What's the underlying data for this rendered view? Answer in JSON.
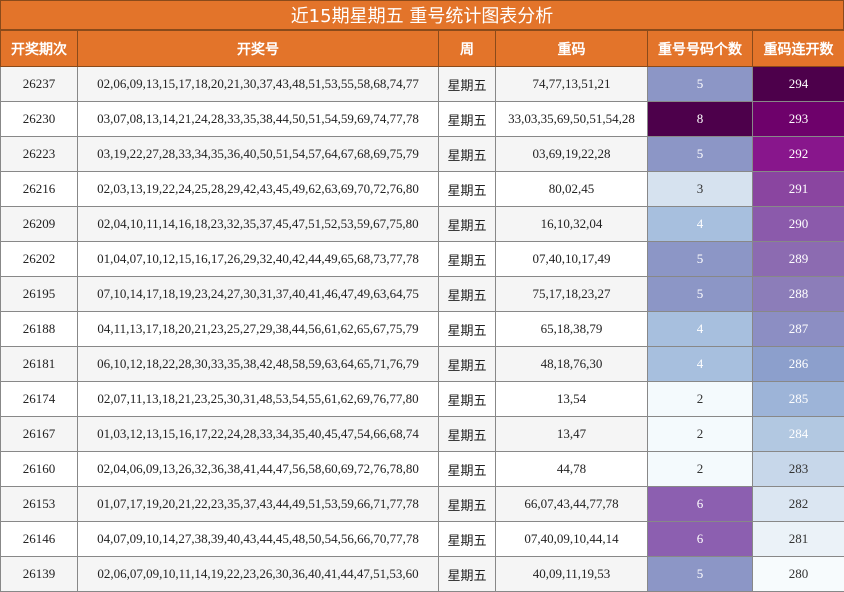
{
  "title": "近15期星期五 重号统计图表分析",
  "headers": [
    "开奖期次",
    "开奖号",
    "周",
    "重码",
    "重号号码个数",
    "重码连开数"
  ],
  "rows": [
    {
      "period": "26237",
      "numbers": "02,06,09,13,15,17,18,20,21,30,37,43,48,51,53,55,58,68,74,77",
      "week": "星期五",
      "repeat": "74,77,13,51,21",
      "count": "5",
      "count_color": "#8c96c6",
      "streak": "294",
      "streak_color": "#4d004b"
    },
    {
      "period": "26230",
      "numbers": "03,07,08,13,14,21,24,28,33,35,38,44,50,51,54,59,69,74,77,78",
      "week": "星期五",
      "repeat": "33,03,35,69,50,51,54,28",
      "count": "8",
      "count_color": "#4d004b",
      "streak": "293",
      "streak_color": "#6e016b"
    },
    {
      "period": "26223",
      "numbers": "03,19,22,27,28,33,34,35,36,40,50,51,54,57,64,67,68,69,75,79",
      "week": "星期五",
      "repeat": "03,69,19,22,28",
      "count": "5",
      "count_color": "#8c96c6",
      "streak": "292",
      "streak_color": "#88168c"
    },
    {
      "period": "26216",
      "numbers": "02,03,13,19,22,24,25,28,29,42,43,45,49,62,63,69,70,72,76,80",
      "week": "星期五",
      "repeat": "80,02,45",
      "count": "3",
      "count_color": "#d6e2ef",
      "streak": "291",
      "streak_color": "#8a45a0"
    },
    {
      "period": "26209",
      "numbers": "02,04,10,11,14,16,18,23,32,35,37,45,47,51,52,53,59,67,75,80",
      "week": "星期五",
      "repeat": "16,10,32,04",
      "count": "4",
      "count_color": "#a7bfde",
      "streak": "290",
      "streak_color": "#8b5aab"
    },
    {
      "period": "26202",
      "numbers": "01,04,07,10,12,15,16,17,26,29,32,40,42,44,49,65,68,73,77,78",
      "week": "星期五",
      "repeat": "07,40,10,17,49",
      "count": "5",
      "count_color": "#8c96c6",
      "streak": "289",
      "streak_color": "#8c6bb1"
    },
    {
      "period": "26195",
      "numbers": "07,10,14,17,18,19,23,24,27,30,31,37,40,41,46,47,49,63,64,75",
      "week": "星期五",
      "repeat": "75,17,18,23,27",
      "count": "5",
      "count_color": "#8c96c6",
      "streak": "288",
      "streak_color": "#8c7db9"
    },
    {
      "period": "26188",
      "numbers": "04,11,13,17,18,20,21,23,25,27,29,38,44,56,61,62,65,67,75,79",
      "week": "星期五",
      "repeat": "65,18,38,79",
      "count": "4",
      "count_color": "#a7bfde",
      "streak": "287",
      "streak_color": "#8c8ec3"
    },
    {
      "period": "26181",
      "numbers": "06,10,12,18,22,28,30,33,35,38,42,48,58,59,63,64,65,71,76,79",
      "week": "星期五",
      "repeat": "48,18,76,30",
      "count": "4",
      "count_color": "#a7bfde",
      "streak": "286",
      "streak_color": "#8c9fcc"
    },
    {
      "period": "26174",
      "numbers": "02,07,11,13,18,21,23,25,30,31,48,53,54,55,61,62,69,76,77,80",
      "week": "星期五",
      "repeat": "13,54",
      "count": "2",
      "count_color": "#f4fafd",
      "streak": "285",
      "streak_color": "#9db4d8"
    },
    {
      "period": "26167",
      "numbers": "01,03,12,13,15,16,17,22,24,28,33,34,35,40,45,47,54,66,68,74",
      "week": "星期五",
      "repeat": "13,47",
      "count": "2",
      "count_color": "#f4fafd",
      "streak": "284",
      "streak_color": "#b2c8e1"
    },
    {
      "period": "26160",
      "numbers": "02,04,06,09,13,26,32,36,38,41,44,47,56,58,60,69,72,76,78,80",
      "week": "星期五",
      "repeat": "44,78",
      "count": "2",
      "count_color": "#f4fafd",
      "streak": "283",
      "streak_color": "#c7d7ea"
    },
    {
      "period": "26153",
      "numbers": "01,07,17,19,20,21,22,23,35,37,43,44,49,51,53,59,66,71,77,78",
      "week": "星期五",
      "repeat": "66,07,43,44,77,78",
      "count": "6",
      "count_color": "#8c5fb0",
      "streak": "282",
      "streak_color": "#dbe6f2"
    },
    {
      "period": "26146",
      "numbers": "04,07,09,10,14,27,38,39,40,43,44,45,48,50,54,56,66,70,77,78",
      "week": "星期五",
      "repeat": "07,40,09,10,44,14",
      "count": "6",
      "count_color": "#8c5fb0",
      "streak": "281",
      "streak_color": "#ebf2f8"
    },
    {
      "period": "26139",
      "numbers": "02,06,07,09,10,11,14,19,22,23,26,30,36,40,41,44,47,51,53,60",
      "week": "星期五",
      "repeat": "40,09,11,19,53",
      "count": "5",
      "count_color": "#8c96c6",
      "streak": "280",
      "streak_color": "#f7fbfd"
    }
  ]
}
